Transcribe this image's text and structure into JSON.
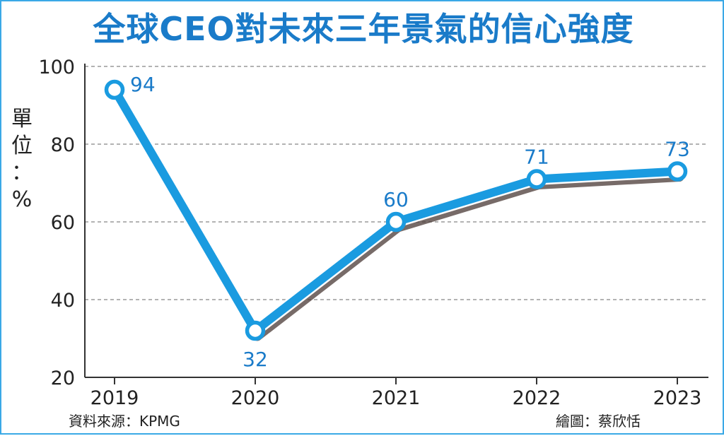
{
  "chart_data": {
    "type": "line",
    "title": "全球CEO對未來三年景氣的信心強度",
    "ylabel": "單位：%",
    "xlabel": "",
    "x": [
      "2019",
      "2020",
      "2021",
      "2022",
      "2023"
    ],
    "values": [
      94,
      32,
      60,
      71,
      73
    ],
    "ylim": [
      20,
      100
    ],
    "yticks": [
      20,
      40,
      60,
      80,
      100
    ],
    "grid": "horizontal dashed",
    "line_color": "#1a9be0",
    "label_color": "#1a7bc9"
  },
  "footer": {
    "source": "資料來源：KPMG",
    "credit": "繪圖：蔡欣恬"
  }
}
